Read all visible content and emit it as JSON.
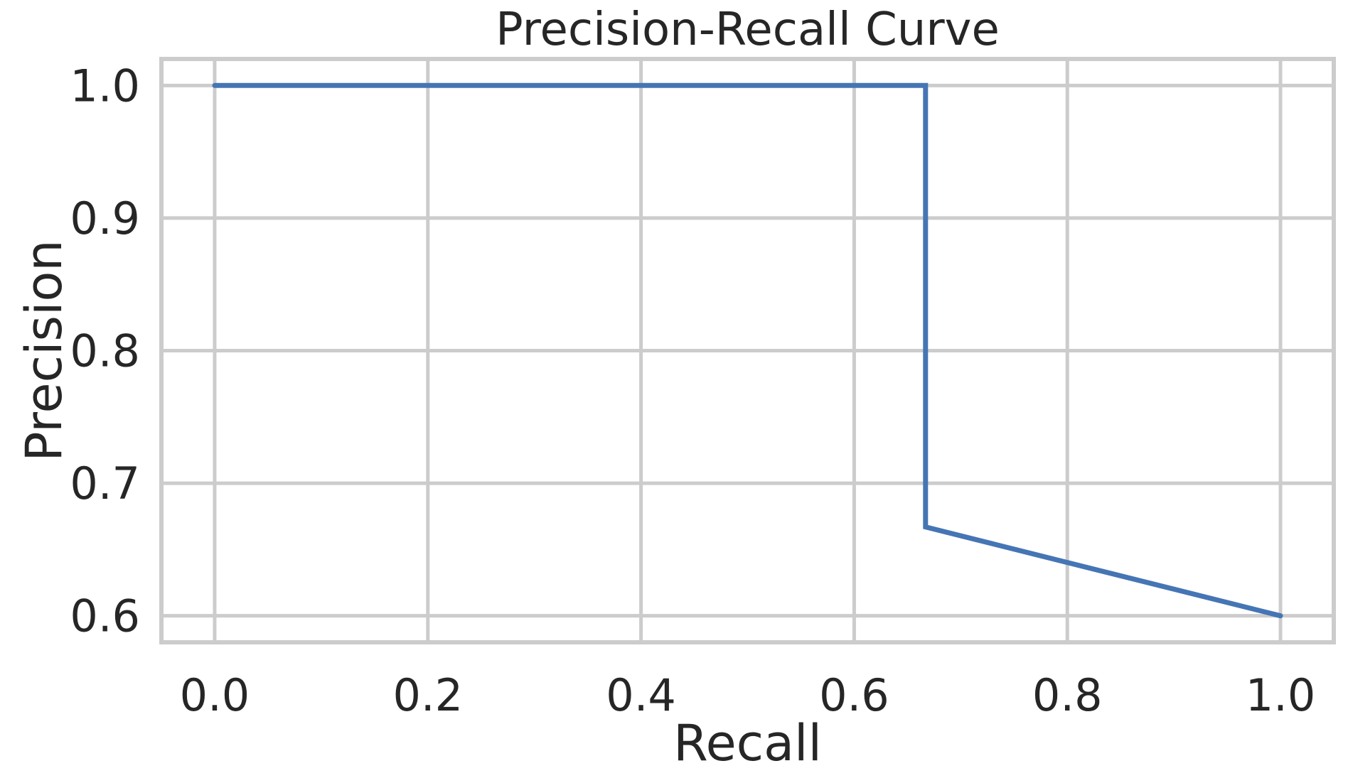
{
  "chart_data": {
    "type": "line",
    "title": "Precision-Recall Curve",
    "xlabel": "Recall",
    "ylabel": "Precision",
    "xlim": [
      -0.05,
      1.05
    ],
    "ylim": [
      0.58,
      1.02
    ],
    "xticks": [
      0.0,
      0.2,
      0.4,
      0.6,
      0.8,
      1.0
    ],
    "xtick_labels": [
      "0.0",
      "0.2",
      "0.4",
      "0.6",
      "0.8",
      "1.0"
    ],
    "yticks": [
      0.6,
      0.7,
      0.8,
      0.9,
      1.0
    ],
    "ytick_labels": [
      "0.6",
      "0.7",
      "0.8",
      "0.9",
      "1.0"
    ],
    "grid": true,
    "series": [
      {
        "color": "#4575b4",
        "x": [
          0.0,
          0.667,
          0.667,
          1.0
        ],
        "y": [
          1.0,
          1.0,
          0.667,
          0.6
        ]
      }
    ]
  }
}
